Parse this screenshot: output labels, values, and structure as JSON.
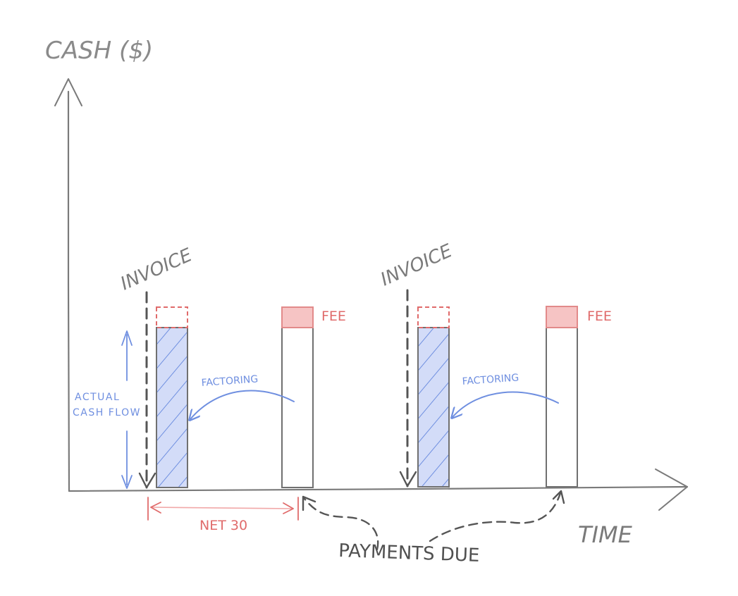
{
  "axes": {
    "y_label": "CASH ($)",
    "x_label": "TIME"
  },
  "labels": {
    "invoice_1": "INVOICE",
    "invoice_2": "INVOICE",
    "fee_1": "FEE",
    "fee_2": "FEE",
    "factoring_1": "FACTORING",
    "factoring_2": "FACTORING",
    "actual_cash_flow_line1": "ACTUAL",
    "actual_cash_flow_line2": "CASH FLOW",
    "net_30": "NET 30",
    "payments_due": "PAYMENTS DUE"
  },
  "colors": {
    "pencil": "#7a7a7a",
    "dark_pencil": "#555555",
    "blue": "#6f8fe0",
    "blue_fill": "#c9d4f7",
    "red": "#e06b6b",
    "red_fill": "#f6c4c4"
  }
}
